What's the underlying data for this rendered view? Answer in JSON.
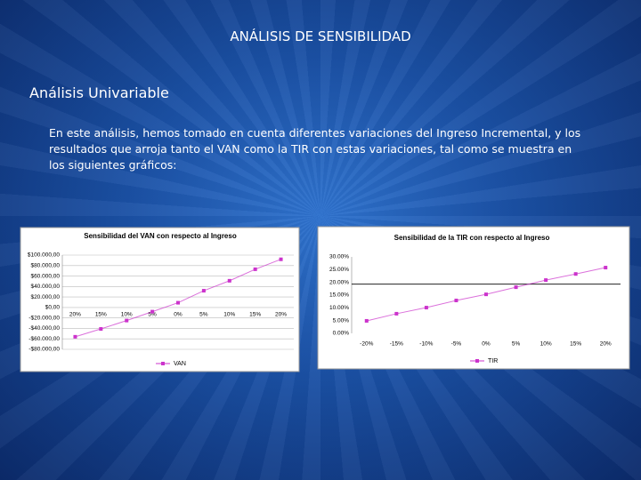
{
  "title": "ANÁLISIS DE SENSIBILIDAD",
  "subtitle": "Análisis Univariable",
  "body": "En este análisis, hemos tomado en cuenta diferentes variaciones del Ingreso Incremental, y los resultados que arroja tanto el VAN como la TIR con estas variaciones, tal como se muestra en los siguientes gráficos:",
  "chart_data": [
    {
      "type": "line",
      "title": "Sensibilidad del VAN con respecto al Ingreso",
      "categories": [
        "20%",
        "15%",
        "10%",
        "5%",
        "0%",
        "5%",
        "10%",
        "15%",
        "20%"
      ],
      "series": [
        {
          "name": "VAN",
          "color": "#cc33cc",
          "values": [
            -56000,
            -41000,
            -25000,
            -8000,
            9000,
            32000,
            51000,
            73000,
            92000
          ]
        }
      ],
      "ylim": [
        -80000,
        100000
      ],
      "yticks": [
        {
          "value": -80000,
          "label": "-$80.000,00"
        },
        {
          "value": -60000,
          "label": "-$60.000,00"
        },
        {
          "value": -40000,
          "label": "-$40.000,00"
        },
        {
          "value": -20000,
          "label": "-$20.000,00"
        },
        {
          "value": 0,
          "label": "$0,00"
        },
        {
          "value": 20000,
          "label": "$20.000,00"
        },
        {
          "value": 40000,
          "label": "$40.000,00"
        },
        {
          "value": 60000,
          "label": "$60.000,00"
        },
        {
          "value": 80000,
          "label": "$80.000,00"
        },
        {
          "value": 100000,
          "label": "$100.000,00"
        }
      ],
      "grid": true
    },
    {
      "type": "line",
      "title": "Sensibilidad de la TIR con respecto al Ingreso",
      "categories": [
        "-20%",
        "-15%",
        "-10%",
        "-5%",
        "0%",
        "5%",
        "10%",
        "15%",
        "20%"
      ],
      "series": [
        {
          "name": "TIR",
          "color": "#cc33cc",
          "values": [
            4.9,
            7.7,
            10.1,
            12.9,
            15.3,
            18.1,
            20.9,
            23.3,
            25.8
          ]
        }
      ],
      "ylim": [
        0,
        30
      ],
      "yticks": [
        {
          "value": 0,
          "label": "0.00%"
        },
        {
          "value": 5,
          "label": "5.00%"
        },
        {
          "value": 10,
          "label": "10.00%"
        },
        {
          "value": 15,
          "label": "15.00%"
        },
        {
          "value": 20,
          "label": "20.00%"
        },
        {
          "value": 25,
          "label": "25.00%"
        },
        {
          "value": 30,
          "label": "30.00%"
        }
      ],
      "hline": 19.3,
      "grid": false
    }
  ]
}
